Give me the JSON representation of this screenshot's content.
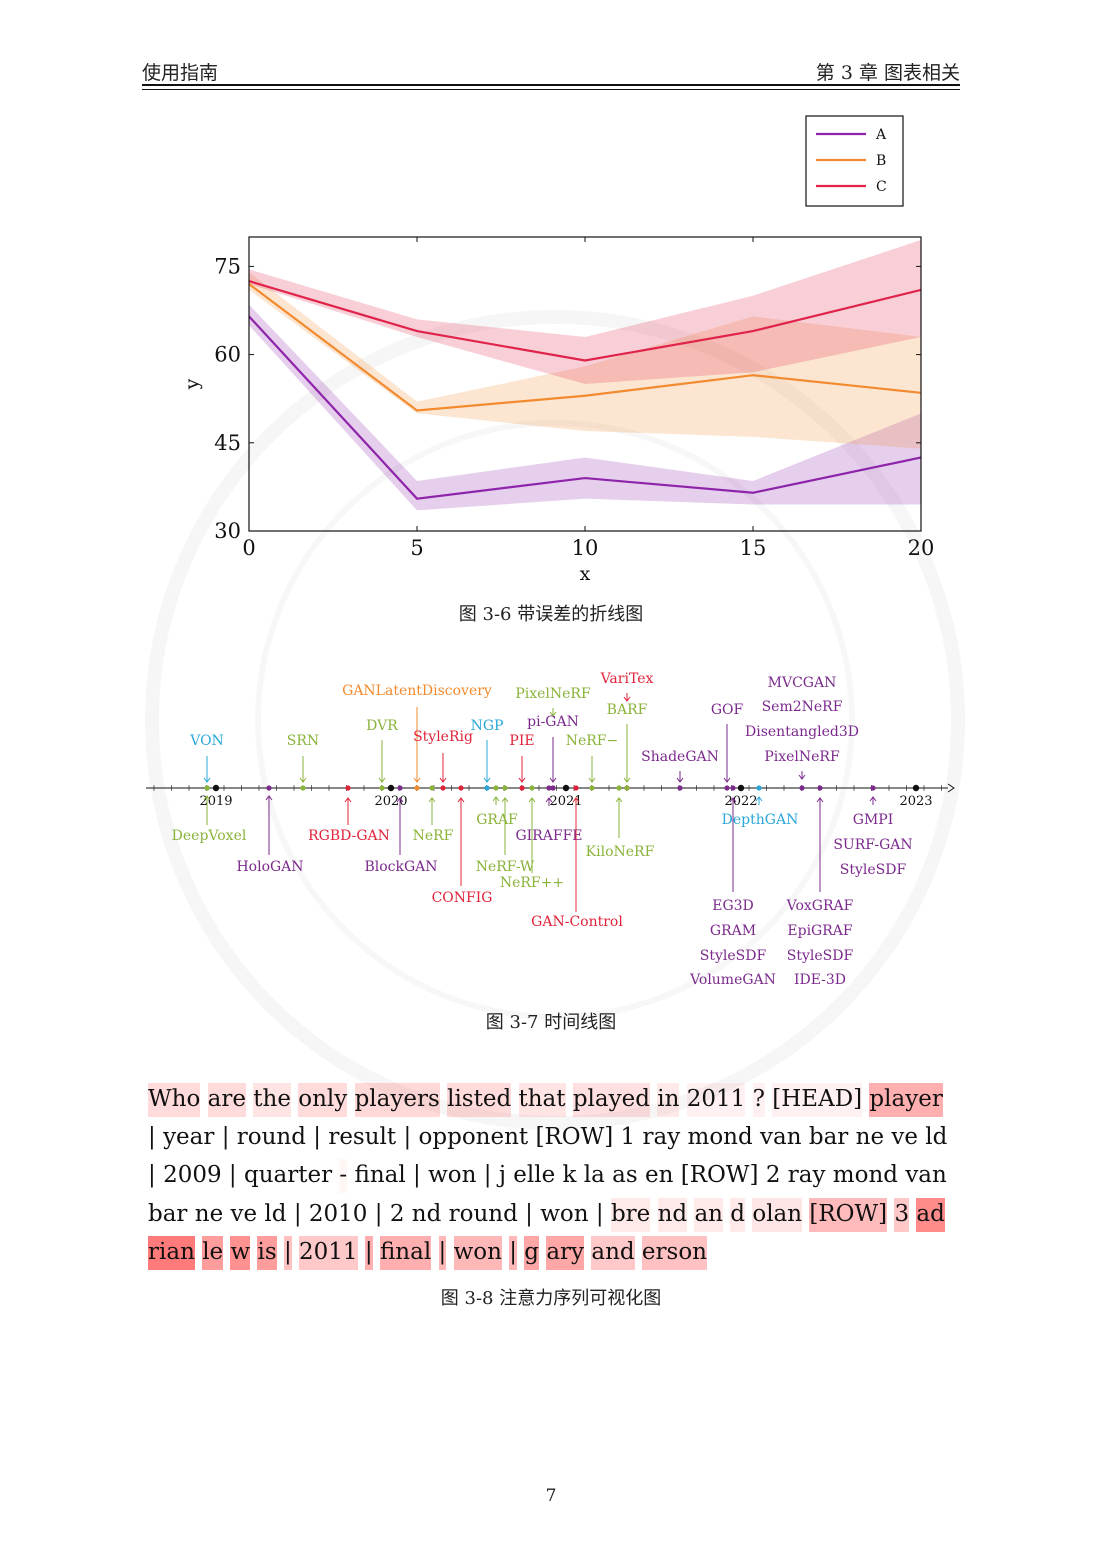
{
  "header": {
    "left": "使用指南",
    "right": "第 3 章  图表相关"
  },
  "figure1": {
    "caption": "图 3-6  带误差的折线图",
    "chart_data": {
      "type": "line",
      "xlabel": "x",
      "ylabel": "y",
      "xlim": [
        0,
        20
      ],
      "ylim": [
        30,
        80
      ],
      "xticks": [
        0,
        5,
        10,
        15,
        20
      ],
      "yticks": [
        30,
        45,
        60,
        75
      ],
      "legend_position": "top-right outside",
      "x": [
        0,
        5,
        10,
        15,
        20
      ],
      "series": [
        {
          "name": "A",
          "color": "#8e24aa",
          "values": [
            66.5,
            35.5,
            39,
            36.5,
            42.5
          ],
          "lower": [
            65,
            33.5,
            35.5,
            34.5,
            34.5
          ],
          "upper": [
            68.5,
            38.5,
            42.5,
            38.5,
            50
          ]
        },
        {
          "name": "B",
          "color": "#f28b30",
          "values": [
            72,
            50.5,
            53,
            56.5,
            53.5
          ],
          "lower": [
            71,
            50,
            47,
            46,
            44
          ],
          "upper": [
            74,
            52,
            58,
            66.5,
            63
          ]
        },
        {
          "name": "C",
          "color": "#e0234a",
          "values": [
            72.5,
            64,
            59,
            64,
            71
          ],
          "lower": [
            72,
            63,
            55,
            57,
            63
          ],
          "upper": [
            74.5,
            66,
            63,
            70,
            79.5
          ]
        }
      ]
    }
  },
  "figure2": {
    "caption": "图 3-7  时间线图",
    "years": [
      "2019",
      "2020",
      "2021",
      "2022",
      "2023"
    ],
    "colors": {
      "blue": "#29a8d8",
      "green": "#8ab33a",
      "orange": "#f28b30",
      "red": "#e0233a",
      "purple": "#7b2a8c",
      "black": "#111111"
    },
    "events_above": [
      {
        "labels": [
          "VON"
        ],
        "color": "blue"
      },
      {
        "labels": [
          "SRN"
        ],
        "color": "green"
      },
      {
        "labels": [
          "DVR"
        ],
        "color": "green"
      },
      {
        "labels": [
          "GANLatentDiscovery"
        ],
        "color": "orange"
      },
      {
        "labels": [
          "StyleRig"
        ],
        "color": "red"
      },
      {
        "labels": [
          "NGP"
        ],
        "color": "blue"
      },
      {
        "labels": [
          "PIE"
        ],
        "color": "red"
      },
      {
        "labels": [
          "PixelNeRF"
        ],
        "color": "green"
      },
      {
        "labels": [
          "pi-GAN"
        ],
        "color": "purple"
      },
      {
        "labels": [
          "NeRF−"
        ],
        "color": "green"
      },
      {
        "labels": [
          "VariTex"
        ],
        "color": "red"
      },
      {
        "labels": [
          "BARF"
        ],
        "color": "green"
      },
      {
        "labels": [
          "ShadeGAN"
        ],
        "color": "purple"
      },
      {
        "labels": [
          "GOF"
        ],
        "color": "purple"
      },
      {
        "labels": [
          "MVCGAN",
          "Sem2NeRF",
          "Disentangled3D",
          "PixelNeRF"
        ],
        "color": "purple"
      }
    ],
    "events_below": [
      {
        "labels": [
          "DeepVoxel"
        ],
        "color": "green"
      },
      {
        "labels": [
          "HoloGAN"
        ],
        "color": "purple"
      },
      {
        "labels": [
          "RGBD-GAN"
        ],
        "color": "red"
      },
      {
        "labels": [
          "BlockGAN"
        ],
        "color": "purple"
      },
      {
        "labels": [
          "NeRF"
        ],
        "color": "green"
      },
      {
        "labels": [
          "CONFIG"
        ],
        "color": "red"
      },
      {
        "labels": [
          "GRAF"
        ],
        "color": "green"
      },
      {
        "labels": [
          "NeRF-W"
        ],
        "color": "green"
      },
      {
        "labels": [
          "NeRF++"
        ],
        "color": "green"
      },
      {
        "labels": [
          "GIRAFFE"
        ],
        "color": "purple"
      },
      {
        "labels": [
          "GAN-Control"
        ],
        "color": "red"
      },
      {
        "labels": [
          "KiloNeRF"
        ],
        "color": "green"
      },
      {
        "labels": [
          "DepthGAN"
        ],
        "color": "blue"
      },
      {
        "labels": [
          "EG3D",
          "GRAM",
          "StyleSDF",
          "VolumeGAN"
        ],
        "color": "purple"
      },
      {
        "labels": [
          "VoxGRAF",
          "EpiGRAF",
          "StyleSDF",
          "IDE-3D"
        ],
        "color": "purple"
      },
      {
        "labels": [
          "GMPI",
          "SURF-GAN",
          "StyleSDF"
        ],
        "color": "purple"
      }
    ]
  },
  "figure3": {
    "caption": "图 3-8  注意力序列可视化图",
    "base_color": "#ff4d4d",
    "tokens": [
      {
        "t": "Who",
        "w": 0.2
      },
      {
        "t": "are",
        "w": 0.2
      },
      {
        "t": "the",
        "w": 0.15
      },
      {
        "t": "only",
        "w": 0.2
      },
      {
        "t": "players",
        "w": 0.22
      },
      {
        "t": "listed",
        "w": 0.2
      },
      {
        "t": "that",
        "w": 0.15
      },
      {
        "t": "played",
        "w": 0.18
      },
      {
        "t": "in",
        "w": 0.12
      },
      {
        "t": "2011",
        "w": 0.08
      },
      {
        "t": "?",
        "w": 0.08
      },
      {
        "t": "[HEAD]",
        "w": 0.08
      },
      {
        "t": "player",
        "w": 0.45
      },
      {
        "t": "|",
        "w": 0
      },
      {
        "t": "year",
        "w": 0
      },
      {
        "t": "|",
        "w": 0
      },
      {
        "t": "round",
        "w": 0
      },
      {
        "t": "|",
        "w": 0
      },
      {
        "t": "result",
        "w": 0
      },
      {
        "t": "|",
        "w": 0
      },
      {
        "t": "opponent",
        "w": 0
      },
      {
        "t": "[ROW]",
        "w": 0
      },
      {
        "t": "1",
        "w": 0
      },
      {
        "t": "ray",
        "w": 0
      },
      {
        "t": "mond",
        "w": 0
      },
      {
        "t": "van",
        "w": 0
      },
      {
        "t": "bar",
        "w": 0
      },
      {
        "t": "ne",
        "w": 0
      },
      {
        "t": "ve",
        "w": 0
      },
      {
        "t": "ld",
        "w": 0
      },
      {
        "t": "|",
        "w": 0
      },
      {
        "t": "2009",
        "w": 0
      },
      {
        "t": "|",
        "w": 0
      },
      {
        "t": "quarter",
        "w": 0
      },
      {
        "t": "-",
        "w": 0.05
      },
      {
        "t": "final",
        "w": 0
      },
      {
        "t": "|",
        "w": 0
      },
      {
        "t": "won",
        "w": 0
      },
      {
        "t": "|",
        "w": 0
      },
      {
        "t": "j",
        "w": 0
      },
      {
        "t": "elle",
        "w": 0
      },
      {
        "t": "k",
        "w": 0
      },
      {
        "t": "la",
        "w": 0
      },
      {
        "t": "as",
        "w": 0
      },
      {
        "t": "en",
        "w": 0
      },
      {
        "t": "[ROW]",
        "w": 0
      },
      {
        "t": "2",
        "w": 0
      },
      {
        "t": "ray",
        "w": 0
      },
      {
        "t": "mond",
        "w": 0
      },
      {
        "t": "van",
        "w": 0
      },
      {
        "t": "bar",
        "w": 0
      },
      {
        "t": "ne",
        "w": 0
      },
      {
        "t": "ve",
        "w": 0
      },
      {
        "t": "ld",
        "w": 0
      },
      {
        "t": "|",
        "w": 0
      },
      {
        "t": "2010",
        "w": 0
      },
      {
        "t": "|",
        "w": 0
      },
      {
        "t": "2",
        "w": 0
      },
      {
        "t": "nd",
        "w": 0
      },
      {
        "t": "round",
        "w": 0
      },
      {
        "t": "|",
        "w": 0
      },
      {
        "t": "won",
        "w": 0
      },
      {
        "t": "|",
        "w": 0
      },
      {
        "t": "bre",
        "w": 0.12
      },
      {
        "t": "nd",
        "w": 0.12
      },
      {
        "t": "an",
        "w": 0.12
      },
      {
        "t": "d",
        "w": 0.12
      },
      {
        "t": "olan",
        "w": 0.14
      },
      {
        "t": "[ROW]",
        "w": 0.38
      },
      {
        "t": "3",
        "w": 0.3
      },
      {
        "t": "ad",
        "w": 0.65
      },
      {
        "t": "rian",
        "w": 0.75
      },
      {
        "t": "le",
        "w": 0.55
      },
      {
        "t": "w",
        "w": 0.62
      },
      {
        "t": "is",
        "w": 0.55
      },
      {
        "t": "|",
        "w": 0.35
      },
      {
        "t": "2011",
        "w": 0.3
      },
      {
        "t": "|",
        "w": 0.45
      },
      {
        "t": "final",
        "w": 0.45
      },
      {
        "t": "|",
        "w": 0.4
      },
      {
        "t": "won",
        "w": 0.4
      },
      {
        "t": "|",
        "w": 0.4
      },
      {
        "t": "g",
        "w": 0.5
      },
      {
        "t": "ary",
        "w": 0.5
      },
      {
        "t": "and",
        "w": 0.3
      },
      {
        "t": "erson",
        "w": 0.35
      }
    ]
  },
  "page_number": "7"
}
